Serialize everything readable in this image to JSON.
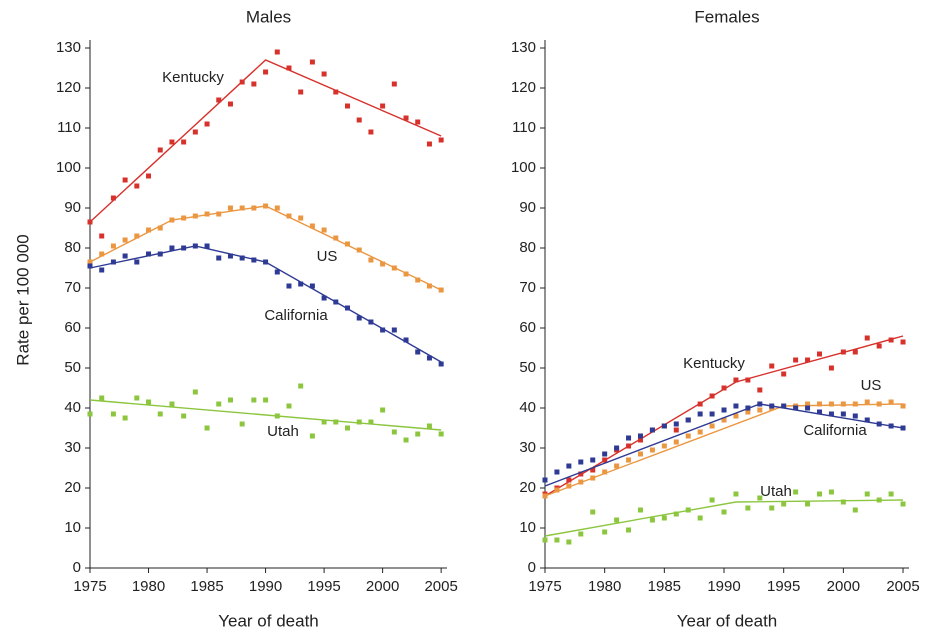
{
  "chart_data": [
    {
      "type": "scatter",
      "title": "Males",
      "xlabel": "Year of death",
      "ylabel": "Rate per 100 000",
      "x": [
        1975,
        1976,
        1977,
        1978,
        1979,
        1980,
        1981,
        1982,
        1983,
        1984,
        1985,
        1986,
        1987,
        1988,
        1989,
        1990,
        1991,
        1992,
        1993,
        1994,
        1995,
        1996,
        1997,
        1998,
        1999,
        2000,
        2001,
        2002,
        2003,
        2004,
        2005
      ],
      "xlim": [
        1975,
        2005.5
      ],
      "xticks": [
        1975,
        1980,
        1985,
        1990,
        1995,
        2000,
        2005
      ],
      "ylim": [
        0,
        132
      ],
      "yticks": [
        0,
        10,
        20,
        30,
        40,
        50,
        60,
        70,
        80,
        90,
        100,
        110,
        120,
        130
      ],
      "series": [
        {
          "name": "Kentucky",
          "color": "#d7312c",
          "values": [
            86.5,
            83,
            92.5,
            97,
            95.5,
            98,
            104.5,
            106.5,
            106.5,
            109,
            111,
            117,
            116,
            121.5,
            121,
            124,
            129,
            125,
            119,
            126.5,
            123.5,
            119,
            115.5,
            112,
            109,
            115.5,
            121,
            112.5,
            111.5,
            106,
            107
          ],
          "fit_x": [
            1975,
            1990,
            2005
          ],
          "fit_values": [
            86.5,
            127,
            108
          ]
        },
        {
          "name": "US",
          "color": "#eb9640",
          "values": [
            76.5,
            78.5,
            80.5,
            82,
            83,
            84.5,
            85,
            87,
            87.5,
            88,
            88.5,
            88.5,
            90,
            90,
            90,
            90.5,
            90,
            88,
            87.5,
            85.5,
            84.5,
            82.5,
            81,
            79.5,
            77,
            76,
            75,
            73.5,
            72,
            70.5,
            69.5
          ],
          "fit_x": [
            1975,
            1982,
            1990,
            2005
          ],
          "fit_values": [
            76.5,
            87,
            90.5,
            69.5
          ]
        },
        {
          "name": "California",
          "color": "#2e3a93",
          "values": [
            75.5,
            74.5,
            76.5,
            78,
            76.5,
            78.5,
            78.5,
            80,
            80,
            80.5,
            80.5,
            77.5,
            78,
            77.5,
            77,
            76.5,
            74,
            70.5,
            71,
            70.5,
            67.5,
            66.5,
            65,
            62.5,
            61.5,
            59.5,
            59.5,
            57,
            54,
            52.5,
            51
          ],
          "fit_x": [
            1975,
            1984,
            1990,
            2005
          ],
          "fit_values": [
            75,
            80.5,
            76.5,
            51.5
          ]
        },
        {
          "name": "Utah",
          "color": "#8cc63f",
          "values": [
            38.5,
            42.5,
            38.5,
            37.5,
            42.5,
            41.5,
            38.5,
            41,
            38,
            44,
            35,
            41,
            42,
            36,
            42,
            42,
            38,
            40.5,
            45.5,
            33,
            36.5,
            36.5,
            35,
            36.5,
            36.5,
            39.5,
            34,
            32,
            33.5,
            35.5,
            33.5
          ],
          "fit_x": [
            1975,
            2005
          ],
          "fit_values": [
            42,
            34.5
          ]
        }
      ]
    },
    {
      "type": "scatter",
      "title": "Females",
      "xlabel": "Year of death",
      "x": [
        1975,
        1976,
        1977,
        1978,
        1979,
        1980,
        1981,
        1982,
        1983,
        1984,
        1985,
        1986,
        1987,
        1988,
        1989,
        1990,
        1991,
        1992,
        1993,
        1994,
        1995,
        1996,
        1997,
        1998,
        1999,
        2000,
        2001,
        2002,
        2003,
        2004,
        2005
      ],
      "xlim": [
        1975,
        2005.5
      ],
      "xticks": [
        1975,
        1980,
        1985,
        1990,
        1995,
        2000,
        2005
      ],
      "ylim": [
        0,
        132
      ],
      "yticks": [
        0,
        10,
        20,
        30,
        40,
        50,
        60,
        70,
        80,
        90,
        100,
        110,
        120,
        130
      ],
      "series": [
        {
          "name": "Kentucky",
          "color": "#d7312c",
          "values": [
            18.5,
            20,
            22,
            23.5,
            24.5,
            27,
            29.5,
            30.5,
            32,
            34.5,
            35.5,
            34.5,
            37,
            41,
            43,
            45,
            47,
            47,
            44.5,
            50.5,
            48.5,
            52,
            52,
            53.5,
            50,
            54,
            54,
            57.5,
            55.5,
            57,
            56.5
          ],
          "fit_x": [
            1975,
            1991,
            2005
          ],
          "fit_values": [
            18,
            46.5,
            58
          ]
        },
        {
          "name": "US",
          "color": "#eb9640",
          "values": [
            18,
            19.5,
            20.5,
            21.5,
            22.5,
            24,
            25.5,
            27,
            28.5,
            29.5,
            30.5,
            31.5,
            33,
            34,
            35.5,
            37,
            38,
            39,
            39.5,
            40,
            40.5,
            40.5,
            41,
            41,
            41,
            41,
            41,
            41.5,
            41,
            41.5,
            40.5
          ],
          "fit_x": [
            1975,
            1995,
            2005
          ],
          "fit_values": [
            18,
            40.5,
            41
          ]
        },
        {
          "name": "California",
          "color": "#2e3a93",
          "values": [
            22,
            24,
            25.5,
            26.5,
            27,
            28.5,
            30,
            32.5,
            33,
            34.5,
            35.5,
            36,
            37,
            38.5,
            38.5,
            39.5,
            40.5,
            40,
            41,
            40.5,
            40.5,
            40,
            40,
            39,
            38.5,
            38.5,
            38,
            37,
            36,
            35.5,
            35
          ],
          "fit_x": [
            1975,
            1993,
            2005
          ],
          "fit_values": [
            20.5,
            41,
            35
          ]
        },
        {
          "name": "Utah",
          "color": "#8cc63f",
          "values": [
            7,
            7,
            6.5,
            8.5,
            14,
            9,
            12,
            9.5,
            14.5,
            12,
            12.5,
            13.5,
            14.5,
            12.5,
            17,
            14,
            18.5,
            15,
            17.5,
            15,
            16,
            19,
            16,
            18.5,
            19,
            16.5,
            14.5,
            18.5,
            17,
            18.5,
            16
          ],
          "fit_x": [
            1975,
            1991,
            2005
          ],
          "fit_values": [
            8,
            16.5,
            17
          ]
        }
      ]
    }
  ]
}
